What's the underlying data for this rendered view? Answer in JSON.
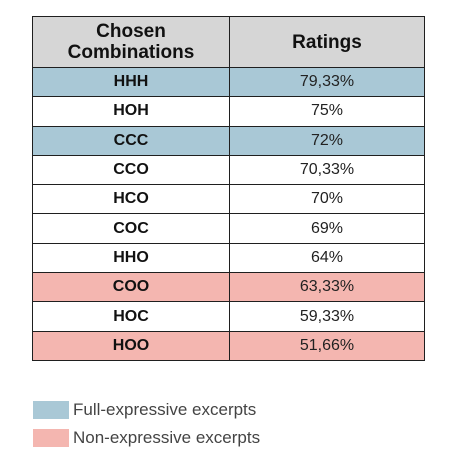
{
  "table": {
    "headers": [
      "Chosen\nCombinations",
      "Ratings"
    ],
    "rows": [
      {
        "combination": "HHH",
        "rating": "79,33%",
        "category": "full"
      },
      {
        "combination": "HOH",
        "rating": "75%",
        "category": "none"
      },
      {
        "combination": "CCC",
        "rating": "72%",
        "category": "full"
      },
      {
        "combination": "CCO",
        "rating": "70,33%",
        "category": "none"
      },
      {
        "combination": "HCO",
        "rating": "70%",
        "category": "none"
      },
      {
        "combination": "COC",
        "rating": "69%",
        "category": "none"
      },
      {
        "combination": "HHO",
        "rating": "64%",
        "category": "none"
      },
      {
        "combination": "COO",
        "rating": "63,33%",
        "category": "non"
      },
      {
        "combination": "HOC",
        "rating": "59,33%",
        "category": "none"
      },
      {
        "combination": "HOO",
        "rating": "51,66%",
        "category": "non"
      }
    ]
  },
  "legend": [
    {
      "label": "Full-expressive excerpts",
      "color": "#a9c8d6"
    },
    {
      "label": "Non-expressive excerpts",
      "color": "#f4b6b0"
    }
  ],
  "colors": {
    "header_bg": "#d6d6d6",
    "full": "#a9c8d6",
    "non": "#f4b6b0"
  }
}
